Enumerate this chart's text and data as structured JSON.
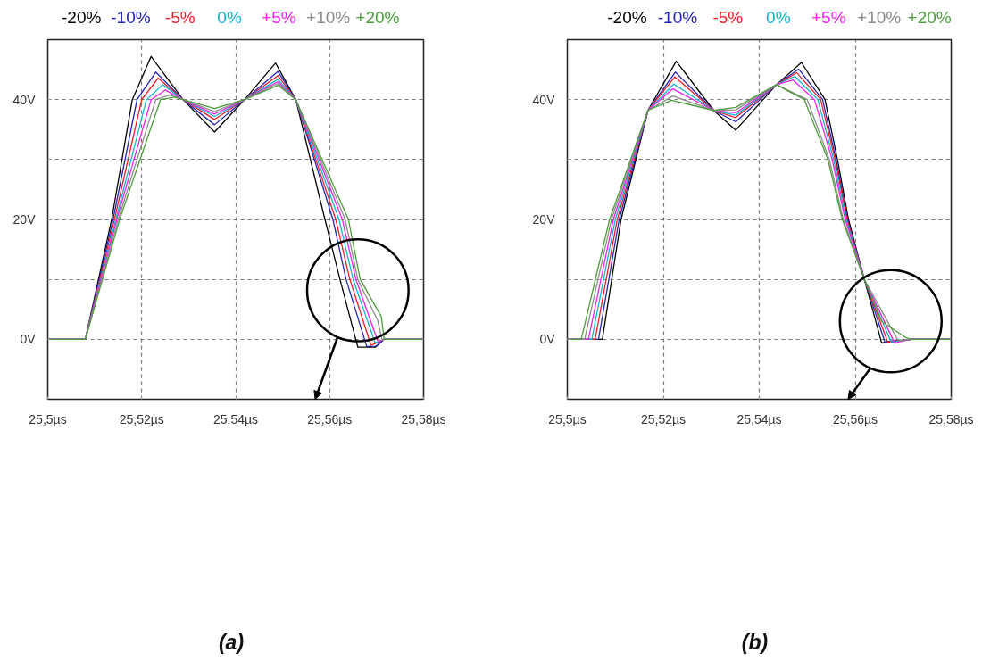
{
  "chart_data": [
    {
      "type": "line",
      "legend": "top",
      "grid": true,
      "xlim": [
        25.5,
        25.58
      ],
      "ylim": [
        -10,
        50
      ],
      "annotations": [
        "(a)"
      ],
      "xticks": [
        {
          "value": 25.5,
          "label": "25,5µs"
        },
        {
          "value": 25.52,
          "label": "25,52µs"
        },
        {
          "value": 25.54,
          "label": "25,54µs"
        },
        {
          "value": 25.56,
          "label": "25,56µs"
        },
        {
          "value": 25.58,
          "label": "25,58µs"
        }
      ],
      "yticks": [
        {
          "value": 0,
          "label": "0V"
        },
        {
          "value": 10,
          "label": null
        },
        {
          "value": 20,
          "label": "20V"
        },
        {
          "value": 30,
          "label": null
        },
        {
          "value": 40,
          "label": "40V"
        }
      ],
      "series": [
        {
          "name": "-20%",
          "color": "#000000",
          "x": [
            25.5,
            25.508,
            25.5136,
            25.518,
            25.522,
            25.5288,
            25.5355,
            25.5419,
            25.5485,
            25.5528,
            25.559,
            25.5622,
            25.566,
            25.5698,
            25.5716,
            25.58
          ],
          "values": [
            0,
            0,
            20,
            40,
            47.2,
            40,
            34.6,
            40,
            46.1,
            40,
            20,
            10,
            -1.3,
            -1.3,
            0,
            0
          ]
        },
        {
          "name": "-10%",
          "color": "#2424b4",
          "x": [
            25.5,
            25.508,
            25.5139,
            25.519,
            25.523,
            25.5288,
            25.5355,
            25.5419,
            25.549,
            25.5528,
            25.5607,
            25.5635,
            25.5679,
            25.5698,
            25.5716,
            25.58
          ],
          "values": [
            0,
            0,
            20,
            40,
            44.6,
            40,
            35.8,
            40,
            44.7,
            40,
            20,
            10,
            -1.2,
            -1.2,
            0,
            0
          ]
        },
        {
          "name": "-5%",
          "color": "#ee1c2c",
          "x": [
            25.5,
            25.508,
            25.5142,
            25.52,
            25.5235,
            25.5288,
            25.5355,
            25.5419,
            25.549,
            25.5528,
            25.5613,
            25.5643,
            25.5688,
            25.5716,
            25.58
          ],
          "values": [
            0,
            0,
            20,
            40,
            43.6,
            40,
            36.7,
            40,
            44.0,
            40,
            20,
            10,
            -1.0,
            0,
            0
          ]
        },
        {
          "name": "0%",
          "color": "#12b4cc",
          "x": [
            25.5,
            25.508,
            25.5145,
            25.521,
            25.5245,
            25.5288,
            25.5355,
            25.5419,
            25.549,
            25.5528,
            25.562,
            25.565,
            25.5697,
            25.5716,
            25.58
          ],
          "values": [
            0,
            0,
            20,
            40,
            42.5,
            40,
            37.2,
            40,
            43.4,
            40,
            20,
            10,
            -0.6,
            0,
            0
          ]
        },
        {
          "name": "+5%",
          "color": "#ee22ee",
          "x": [
            25.5,
            25.508,
            25.5147,
            25.522,
            25.525,
            25.5288,
            25.5355,
            25.5419,
            25.549,
            25.5528,
            25.5627,
            25.5656,
            25.5703,
            25.5716,
            25.58
          ],
          "values": [
            0,
            0,
            20,
            40,
            41.6,
            40,
            37.6,
            40,
            43.0,
            40,
            20,
            10,
            -0.4,
            0,
            0
          ]
        },
        {
          "name": "+10%",
          "color": "#8c8c8c",
          "x": [
            25.5,
            25.508,
            25.515,
            25.523,
            25.526,
            25.5288,
            25.5355,
            25.5419,
            25.549,
            25.5528,
            25.5633,
            25.566,
            25.5702,
            25.5712,
            25.5716,
            25.58
          ],
          "values": [
            0,
            0,
            20,
            40,
            40.8,
            40,
            38.0,
            40,
            42.7,
            40,
            20,
            10,
            3.2,
            -0.2,
            0,
            0
          ]
        },
        {
          "name": "+20%",
          "color": "#4c9c3c",
          "x": [
            25.5,
            25.508,
            25.5153,
            25.524,
            25.527,
            25.5288,
            25.5355,
            25.5419,
            25.549,
            25.5528,
            25.564,
            25.5665,
            25.571,
            25.5716,
            25.58
          ],
          "values": [
            0,
            0,
            20,
            40,
            40.4,
            40,
            38.5,
            40,
            42.4,
            40,
            20,
            10,
            3.8,
            0,
            0
          ]
        }
      ]
    },
    {
      "type": "line",
      "legend": "top",
      "grid": true,
      "xlim": [
        25.5,
        25.58
      ],
      "ylim": [
        -10,
        50
      ],
      "annotations": [
        "(b)"
      ],
      "xticks": [
        {
          "value": 25.5,
          "label": "25,5µs"
        },
        {
          "value": 25.52,
          "label": "25,52µs"
        },
        {
          "value": 25.54,
          "label": "25,54µs"
        },
        {
          "value": 25.56,
          "label": "25,56µs"
        },
        {
          "value": 25.58,
          "label": "25,58µs"
        }
      ],
      "yticks": [
        {
          "value": 0,
          "label": "0V"
        },
        {
          "value": 10,
          "label": null
        },
        {
          "value": 20,
          "label": "20V"
        },
        {
          "value": 30,
          "label": null
        },
        {
          "value": 40,
          "label": "40V"
        }
      ],
      "series": [
        {
          "name": "-20%",
          "color": "#000000",
          "x": [
            25.5,
            25.5073,
            25.5112,
            25.5168,
            25.5227,
            25.5305,
            25.5351,
            25.5436,
            25.5488,
            25.5537,
            25.5563,
            25.5586,
            25.5619,
            25.5655,
            25.5675,
            25.5717,
            25.58
          ],
          "values": [
            0,
            0,
            20,
            38.2,
            46.4,
            38.2,
            34.9,
            42.5,
            46.2,
            40,
            30,
            20,
            10,
            -0.6,
            -0.3,
            0,
            0
          ]
        },
        {
          "name": "-10%",
          "color": "#2424b4",
          "x": [
            25.5,
            25.5065,
            25.5108,
            25.5168,
            25.5225,
            25.5305,
            25.5351,
            25.5436,
            25.5482,
            25.5532,
            25.556,
            25.5584,
            25.5619,
            25.5662,
            25.5717,
            25.58
          ],
          "values": [
            0,
            0,
            20,
            38.2,
            44.6,
            38.2,
            36.3,
            42.5,
            45.1,
            40,
            30,
            20,
            10,
            -0.5,
            0,
            0
          ]
        },
        {
          "name": "-5%",
          "color": "#ee1c2c",
          "x": [
            25.5,
            25.5058,
            25.5104,
            25.5168,
            25.5224,
            25.5305,
            25.5351,
            25.5436,
            25.5478,
            25.5528,
            25.5558,
            25.5583,
            25.5619,
            25.5668,
            25.5717,
            25.58
          ],
          "values": [
            0,
            0,
            20,
            38.2,
            43.8,
            38.2,
            37.0,
            42.5,
            44.5,
            40,
            30,
            20,
            10,
            -0.5,
            0,
            0
          ]
        },
        {
          "name": "0%",
          "color": "#12b4cc",
          "x": [
            25.5,
            25.5051,
            25.51,
            25.5168,
            25.5222,
            25.5305,
            25.5351,
            25.5436,
            25.5474,
            25.5522,
            25.5555,
            25.5581,
            25.5619,
            25.5675,
            25.5717,
            25.58
          ],
          "values": [
            0,
            0,
            20,
            38.2,
            42.6,
            38.2,
            37.4,
            42.5,
            43.9,
            40,
            30,
            20,
            10,
            -0.5,
            0,
            0
          ]
        },
        {
          "name": "+5%",
          "color": "#ee22ee",
          "x": [
            25.5,
            25.5044,
            25.5096,
            25.5168,
            25.522,
            25.5305,
            25.5351,
            25.5436,
            25.547,
            25.5515,
            25.5552,
            25.5579,
            25.5619,
            25.5682,
            25.5717,
            25.58
          ],
          "values": [
            0,
            0,
            20,
            38.2,
            41.8,
            38.2,
            37.8,
            42.5,
            43.3,
            40,
            30,
            20,
            10,
            -0.6,
            0,
            0
          ]
        },
        {
          "name": "+10%",
          "color": "#8c8c8c",
          "x": [
            25.5,
            25.5036,
            25.5092,
            25.5168,
            25.522,
            25.5305,
            25.5351,
            25.5436,
            25.55,
            25.5546,
            25.5575,
            25.5619,
            25.569,
            25.5717,
            25.58
          ],
          "values": [
            0,
            0,
            20,
            38.2,
            40.6,
            38.2,
            38.3,
            42.5,
            40,
            30,
            20,
            10,
            -0.3,
            0,
            0
          ]
        },
        {
          "name": "+20%",
          "color": "#4c9c3c",
          "x": [
            25.5,
            25.5029,
            25.5088,
            25.5168,
            25.5217,
            25.5305,
            25.5351,
            25.5436,
            25.5494,
            25.5543,
            25.5573,
            25.5619,
            25.5655,
            25.5705,
            25.5717,
            25.58
          ],
          "values": [
            0,
            0,
            20,
            38.2,
            39.9,
            38.2,
            38.7,
            42.5,
            40,
            30,
            20,
            10,
            3,
            0.3,
            0,
            0
          ]
        }
      ]
    }
  ]
}
